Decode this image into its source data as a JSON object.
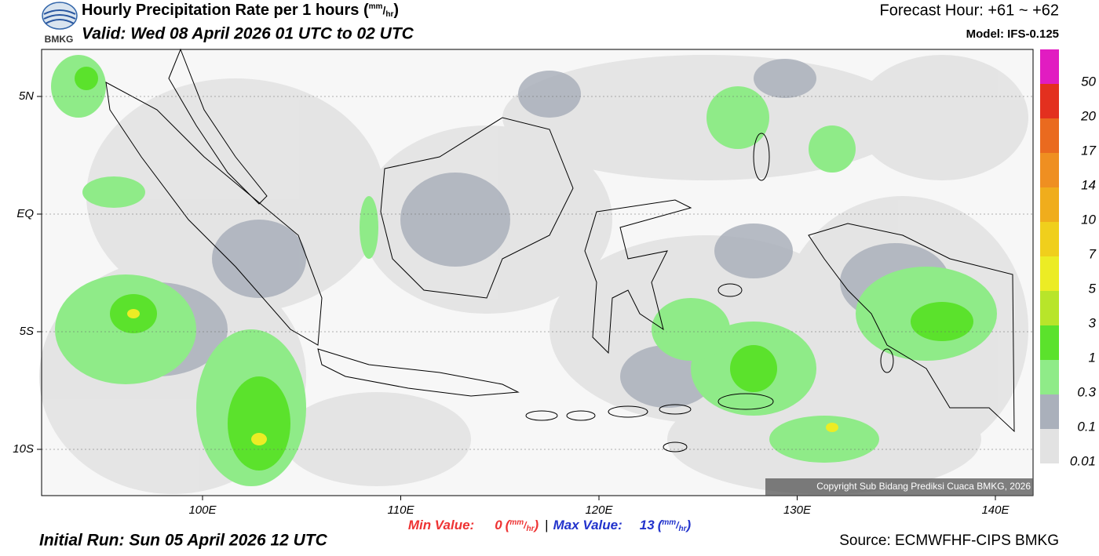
{
  "header": {
    "logo_text": "BMKG",
    "title": "Hourly Precipitation Rate per 1 hours",
    "unit": {
      "open": "(",
      "num": "mm",
      "sep": "/",
      "den": "hr",
      "close": ")"
    },
    "valid": "Valid: Wed 08 April 2026 01 UTC to 02 UTC",
    "forecast_hour": "Forecast Hour: +61 ~ +62",
    "model": "Model: IFS-0.125"
  },
  "map": {
    "lat_labels": [
      "5N",
      "EQ",
      "5S",
      "10S"
    ],
    "lon_labels": [
      "100E",
      "110E",
      "120E",
      "130E",
      "140E"
    ],
    "copyright": "Copyright Sub Bidang Prediksi Cuaca BMKG, 2026"
  },
  "legend": {
    "colors": [
      "#e11cc1",
      "#e3301f",
      "#ea6a1f",
      "#ef8f21",
      "#f0ad1c",
      "#f0cf1c",
      "#ecec25",
      "#b8e52a",
      "#5be22c",
      "#8feb88",
      "#aab0bb",
      "#e2e2e2"
    ],
    "labels": [
      "50",
      "20",
      "17",
      "14",
      "10",
      "7",
      "5",
      "3",
      "1",
      "0.3",
      "0.1",
      "0.01"
    ]
  },
  "footer": {
    "min_label": "Min Value:",
    "min_value": "0",
    "sep": "|",
    "max_label": "Max Value:",
    "max_value": "13",
    "initial_run": "Initial Run: Sun 05 April 2026 12 UTC",
    "source": "Source: ECMWFHF-CIPS BMKG"
  }
}
